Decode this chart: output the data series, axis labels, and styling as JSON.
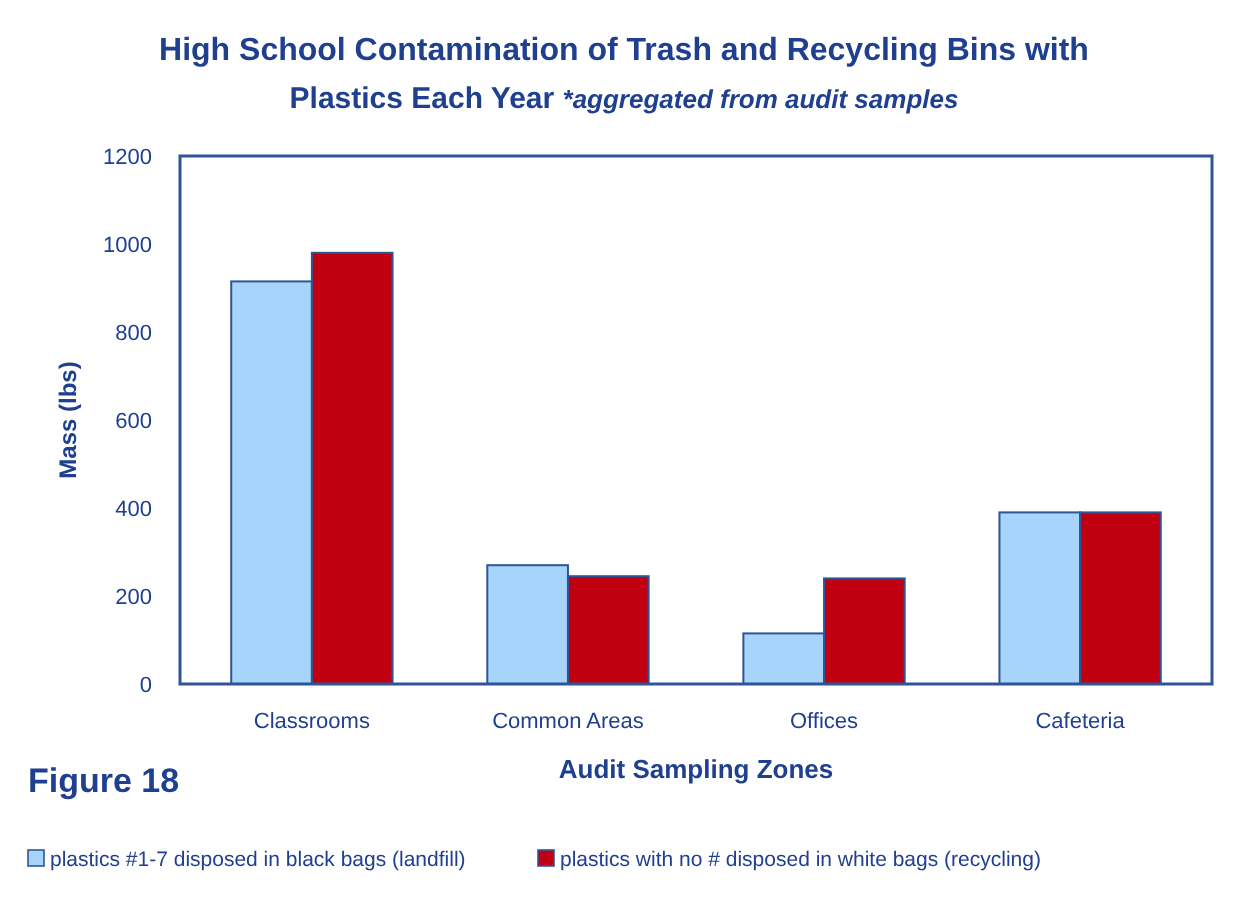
{
  "chart_data": {
    "type": "bar",
    "title": "High School Contamination of Trash and Recycling Bins with",
    "subtitle": "Plastics Each Year *aggregated from audit samples",
    "xlabel": "Audit Sampling Zones",
    "ylabel": "Mass (lbs)",
    "annotations": [
      "Figure 18"
    ],
    "categories": [
      "Classrooms",
      "Common Areas",
      "Offices",
      "Cafeteria"
    ],
    "series": [
      {
        "name": "plastics #1-7 disposed in black bags (landfill)",
        "color": "#a6d4fa",
        "values": [
          915,
          270,
          115,
          390
        ]
      },
      {
        "name": "plastics with no # disposed in white bags (recycling)",
        "color": "#c00010",
        "values": [
          980,
          245,
          240,
          390
        ]
      }
    ],
    "ylim": [
      0,
      1200
    ],
    "yticks": [
      0,
      200,
      400,
      600,
      800,
      1000,
      1200
    ],
    "grid": false,
    "legend": "bottom"
  }
}
